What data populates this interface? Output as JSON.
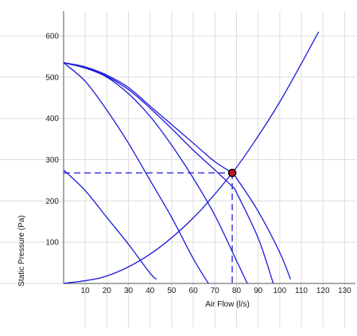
{
  "chart_data": {
    "type": "line",
    "title": "",
    "xlabel": "Air Flow (l/s)",
    "ylabel": "Static Pressure (Pa)",
    "xlim": [
      0,
      135
    ],
    "ylim": [
      0,
      660
    ],
    "x_ticks": [
      10,
      20,
      30,
      40,
      50,
      60,
      70,
      80,
      90,
      100,
      110,
      120,
      130
    ],
    "y_ticks": [
      100,
      200,
      300,
      400,
      500,
      600
    ],
    "grid": true,
    "legend": "none",
    "colors": {
      "curve": "#1a1adb",
      "marker_fill": "#cc1122",
      "marker_stroke": "#000000",
      "grid": "#dddddd"
    },
    "operating_point": {
      "x": 78,
      "y": 268
    },
    "series": [
      {
        "x": [
          0,
          10,
          20,
          30,
          40,
          50,
          60,
          70,
          78,
          80,
          90,
          100,
          105
        ],
        "y": [
          535,
          525,
          505,
          475,
          430,
          385,
          340,
          295,
          268,
          255,
          175,
          75,
          10
        ]
      },
      {
        "x": [
          0,
          10,
          20,
          30,
          40,
          50,
          60,
          70,
          78,
          80,
          90,
          97
        ],
        "y": [
          535,
          524,
          502,
          470,
          425,
          375,
          323,
          275,
          235,
          220,
          110,
          0
        ]
      },
      {
        "x": [
          0,
          10,
          20,
          30,
          40,
          50,
          60,
          70,
          80,
          85
        ],
        "y": [
          535,
          522,
          500,
          460,
          405,
          335,
          255,
          165,
          55,
          0
        ]
      },
      {
        "x": [
          0,
          10,
          20,
          30,
          40,
          50,
          60,
          67
        ],
        "y": [
          535,
          490,
          420,
          340,
          250,
          160,
          60,
          0
        ]
      },
      {
        "x": [
          0,
          10,
          20,
          30,
          40,
          43
        ],
        "y": [
          275,
          225,
          160,
          95,
          25,
          10
        ]
      },
      {
        "x": [
          0,
          20,
          40,
          60,
          78,
          90,
          100,
          110,
          118
        ],
        "y": [
          0,
          18,
          71,
          159,
          268,
          357,
          440,
          533,
          610
        ]
      }
    ]
  }
}
